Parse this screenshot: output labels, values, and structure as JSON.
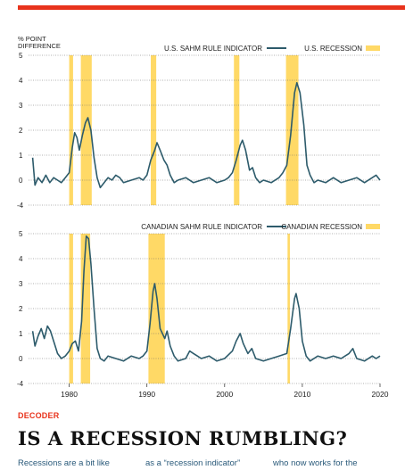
{
  "article": {
    "section": "DECODER",
    "headline": "IS A RECESSION RUMBLING?",
    "body_col1": "Recessions are a bit like",
    "body_col2": "as a “recession indicator”",
    "body_col3": "who now works for the"
  },
  "colors": {
    "accent_red": "#e8331c",
    "line": "#2d5b6b",
    "recession": "#ffd966"
  },
  "chart_data": [
    {
      "type": "line",
      "ylabel_lines": [
        "% POINT",
        "DIFFERENCE"
      ],
      "legend_series": "U.S. SAHM RULE INDICATOR",
      "legend_shade": "U.S. RECESSION",
      "legend_position": "top-right",
      "xlim": [
        1975,
        2020
      ],
      "ylim": [
        -1,
        5
      ],
      "y_ticks": [
        5,
        4,
        3,
        2,
        1,
        0
      ],
      "y_bottom_label": "-4",
      "grid": "dotted horizontal",
      "recessions": [
        [
          1980.0,
          1980.5
        ],
        [
          1981.5,
          1982.9
        ],
        [
          1990.5,
          1991.2
        ],
        [
          2001.2,
          2001.9
        ],
        [
          2007.9,
          2009.5
        ]
      ],
      "series": [
        {
          "name": "U.S. SAHM RULE INDICATOR",
          "points": [
            [
              1975.3,
              0.9
            ],
            [
              1975.6,
              -0.2
            ],
            [
              1976,
              0.1
            ],
            [
              1976.5,
              -0.1
            ],
            [
              1977,
              0.2
            ],
            [
              1977.5,
              -0.1
            ],
            [
              1978,
              0.1
            ],
            [
              1978.5,
              0
            ],
            [
              1979,
              -0.1
            ],
            [
              1979.5,
              0.1
            ],
            [
              1980,
              0.3
            ],
            [
              1980.4,
              1.3
            ],
            [
              1980.7,
              1.9
            ],
            [
              1981,
              1.7
            ],
            [
              1981.3,
              1.2
            ],
            [
              1981.7,
              1.8
            ],
            [
              1982.1,
              2.3
            ],
            [
              1982.4,
              2.5
            ],
            [
              1982.8,
              2.0
            ],
            [
              1983.2,
              0.9
            ],
            [
              1983.6,
              0.1
            ],
            [
              1984,
              -0.3
            ],
            [
              1984.5,
              -0.1
            ],
            [
              1985,
              0.1
            ],
            [
              1985.5,
              0
            ],
            [
              1986,
              0.2
            ],
            [
              1986.5,
              0.1
            ],
            [
              1987,
              -0.1
            ],
            [
              1988,
              0
            ],
            [
              1989,
              0.1
            ],
            [
              1989.5,
              0
            ],
            [
              1990,
              0.2
            ],
            [
              1990.5,
              0.8
            ],
            [
              1991,
              1.2
            ],
            [
              1991.3,
              1.5
            ],
            [
              1991.7,
              1.2
            ],
            [
              1992.2,
              0.8
            ],
            [
              1992.6,
              0.6
            ],
            [
              1993,
              0.2
            ],
            [
              1993.5,
              -0.1
            ],
            [
              1994,
              0
            ],
            [
              1995,
              0.1
            ],
            [
              1996,
              -0.1
            ],
            [
              1997,
              0
            ],
            [
              1998,
              0.1
            ],
            [
              1999,
              -0.1
            ],
            [
              2000,
              0
            ],
            [
              2000.5,
              0.1
            ],
            [
              2001,
              0.3
            ],
            [
              2001.5,
              0.8
            ],
            [
              2002,
              1.4
            ],
            [
              2002.3,
              1.6
            ],
            [
              2002.7,
              1.2
            ],
            [
              2003.2,
              0.4
            ],
            [
              2003.6,
              0.5
            ],
            [
              2004,
              0.1
            ],
            [
              2004.5,
              -0.1
            ],
            [
              2005,
              0
            ],
            [
              2006,
              -0.1
            ],
            [
              2007,
              0.1
            ],
            [
              2007.5,
              0.3
            ],
            [
              2008,
              0.6
            ],
            [
              2008.5,
              1.8
            ],
            [
              2009,
              3.5
            ],
            [
              2009.3,
              3.9
            ],
            [
              2009.7,
              3.5
            ],
            [
              2010.2,
              2.2
            ],
            [
              2010.6,
              0.6
            ],
            [
              2011,
              0.2
            ],
            [
              2011.5,
              -0.1
            ],
            [
              2012,
              0
            ],
            [
              2013,
              -0.1
            ],
            [
              2014,
              0.1
            ],
            [
              2015,
              -0.1
            ],
            [
              2016,
              0
            ],
            [
              2017,
              0.1
            ],
            [
              2018,
              -0.1
            ],
            [
              2019,
              0.1
            ],
            [
              2019.5,
              0.2
            ],
            [
              2020,
              0
            ]
          ]
        }
      ]
    },
    {
      "type": "line",
      "legend_series": "CANADIAN SAHM RULE INDICATOR",
      "legend_shade": "CANADIAN RECESSION",
      "legend_position": "top-right",
      "xlim": [
        1975,
        2020
      ],
      "ylim": [
        -1,
        5
      ],
      "y_ticks": [
        5,
        4,
        3,
        2,
        1,
        0
      ],
      "y_bottom_label": "-4",
      "x_ticks": [
        1980,
        1990,
        2000,
        2010,
        2020
      ],
      "grid": "dotted horizontal",
      "recessions": [
        [
          1980.0,
          1980.5
        ],
        [
          1981.5,
          1982.7
        ],
        [
          1990.2,
          1992.3
        ],
        [
          2008.1,
          2008.4
        ]
      ],
      "series": [
        {
          "name": "CANADIAN SAHM RULE INDICATOR",
          "points": [
            [
              1975.3,
              1.1
            ],
            [
              1975.6,
              0.5
            ],
            [
              1976,
              0.9
            ],
            [
              1976.4,
              1.2
            ],
            [
              1976.8,
              0.8
            ],
            [
              1977.2,
              1.3
            ],
            [
              1977.6,
              1.1
            ],
            [
              1978,
              0.7
            ],
            [
              1978.5,
              0.2
            ],
            [
              1979,
              0
            ],
            [
              1979.5,
              0.1
            ],
            [
              1980,
              0.3
            ],
            [
              1980.4,
              0.6
            ],
            [
              1980.8,
              0.7
            ],
            [
              1981.2,
              0.3
            ],
            [
              1981.6,
              1.5
            ],
            [
              1981.9,
              3.5
            ],
            [
              1982.2,
              4.9
            ],
            [
              1982.5,
              4.8
            ],
            [
              1982.8,
              3.8
            ],
            [
              1983.2,
              2.0
            ],
            [
              1983.6,
              0.4
            ],
            [
              1984,
              0
            ],
            [
              1984.5,
              -0.1
            ],
            [
              1985,
              0.1
            ],
            [
              1986,
              0
            ],
            [
              1987,
              -0.1
            ],
            [
              1988,
              0.1
            ],
            [
              1989,
              0
            ],
            [
              1989.5,
              0.1
            ],
            [
              1990,
              0.3
            ],
            [
              1990.4,
              1.4
            ],
            [
              1990.8,
              2.7
            ],
            [
              1991,
              3.0
            ],
            [
              1991.3,
              2.4
            ],
            [
              1991.7,
              1.2
            ],
            [
              1992,
              1.0
            ],
            [
              1992.3,
              0.8
            ],
            [
              1992.6,
              1.1
            ],
            [
              1993,
              0.5
            ],
            [
              1993.5,
              0.1
            ],
            [
              1994,
              -0.1
            ],
            [
              1995,
              0
            ],
            [
              1995.5,
              0.3
            ],
            [
              1996,
              0.2
            ],
            [
              1996.5,
              0.1
            ],
            [
              1997,
              0
            ],
            [
              1998,
              0.1
            ],
            [
              1999,
              -0.1
            ],
            [
              2000,
              0
            ],
            [
              2001,
              0.3
            ],
            [
              2001.5,
              0.7
            ],
            [
              2002,
              1.0
            ],
            [
              2002.4,
              0.6
            ],
            [
              2003,
              0.2
            ],
            [
              2003.5,
              0.4
            ],
            [
              2004,
              0
            ],
            [
              2005,
              -0.1
            ],
            [
              2006,
              0
            ],
            [
              2007,
              0.1
            ],
            [
              2008,
              0.2
            ],
            [
              2008.5,
              1.2
            ],
            [
              2009,
              2.4
            ],
            [
              2009.2,
              2.6
            ],
            [
              2009.6,
              2.0
            ],
            [
              2010,
              0.7
            ],
            [
              2010.5,
              0.1
            ],
            [
              2011,
              -0.1
            ],
            [
              2012,
              0.1
            ],
            [
              2013,
              0
            ],
            [
              2014,
              0.1
            ],
            [
              2015,
              0
            ],
            [
              2015.5,
              0.1
            ],
            [
              2016,
              0.2
            ],
            [
              2016.5,
              0.4
            ],
            [
              2017,
              0
            ],
            [
              2018,
              -0.1
            ],
            [
              2019,
              0.1
            ],
            [
              2019.5,
              0
            ],
            [
              2020,
              0.1
            ]
          ]
        }
      ]
    }
  ]
}
